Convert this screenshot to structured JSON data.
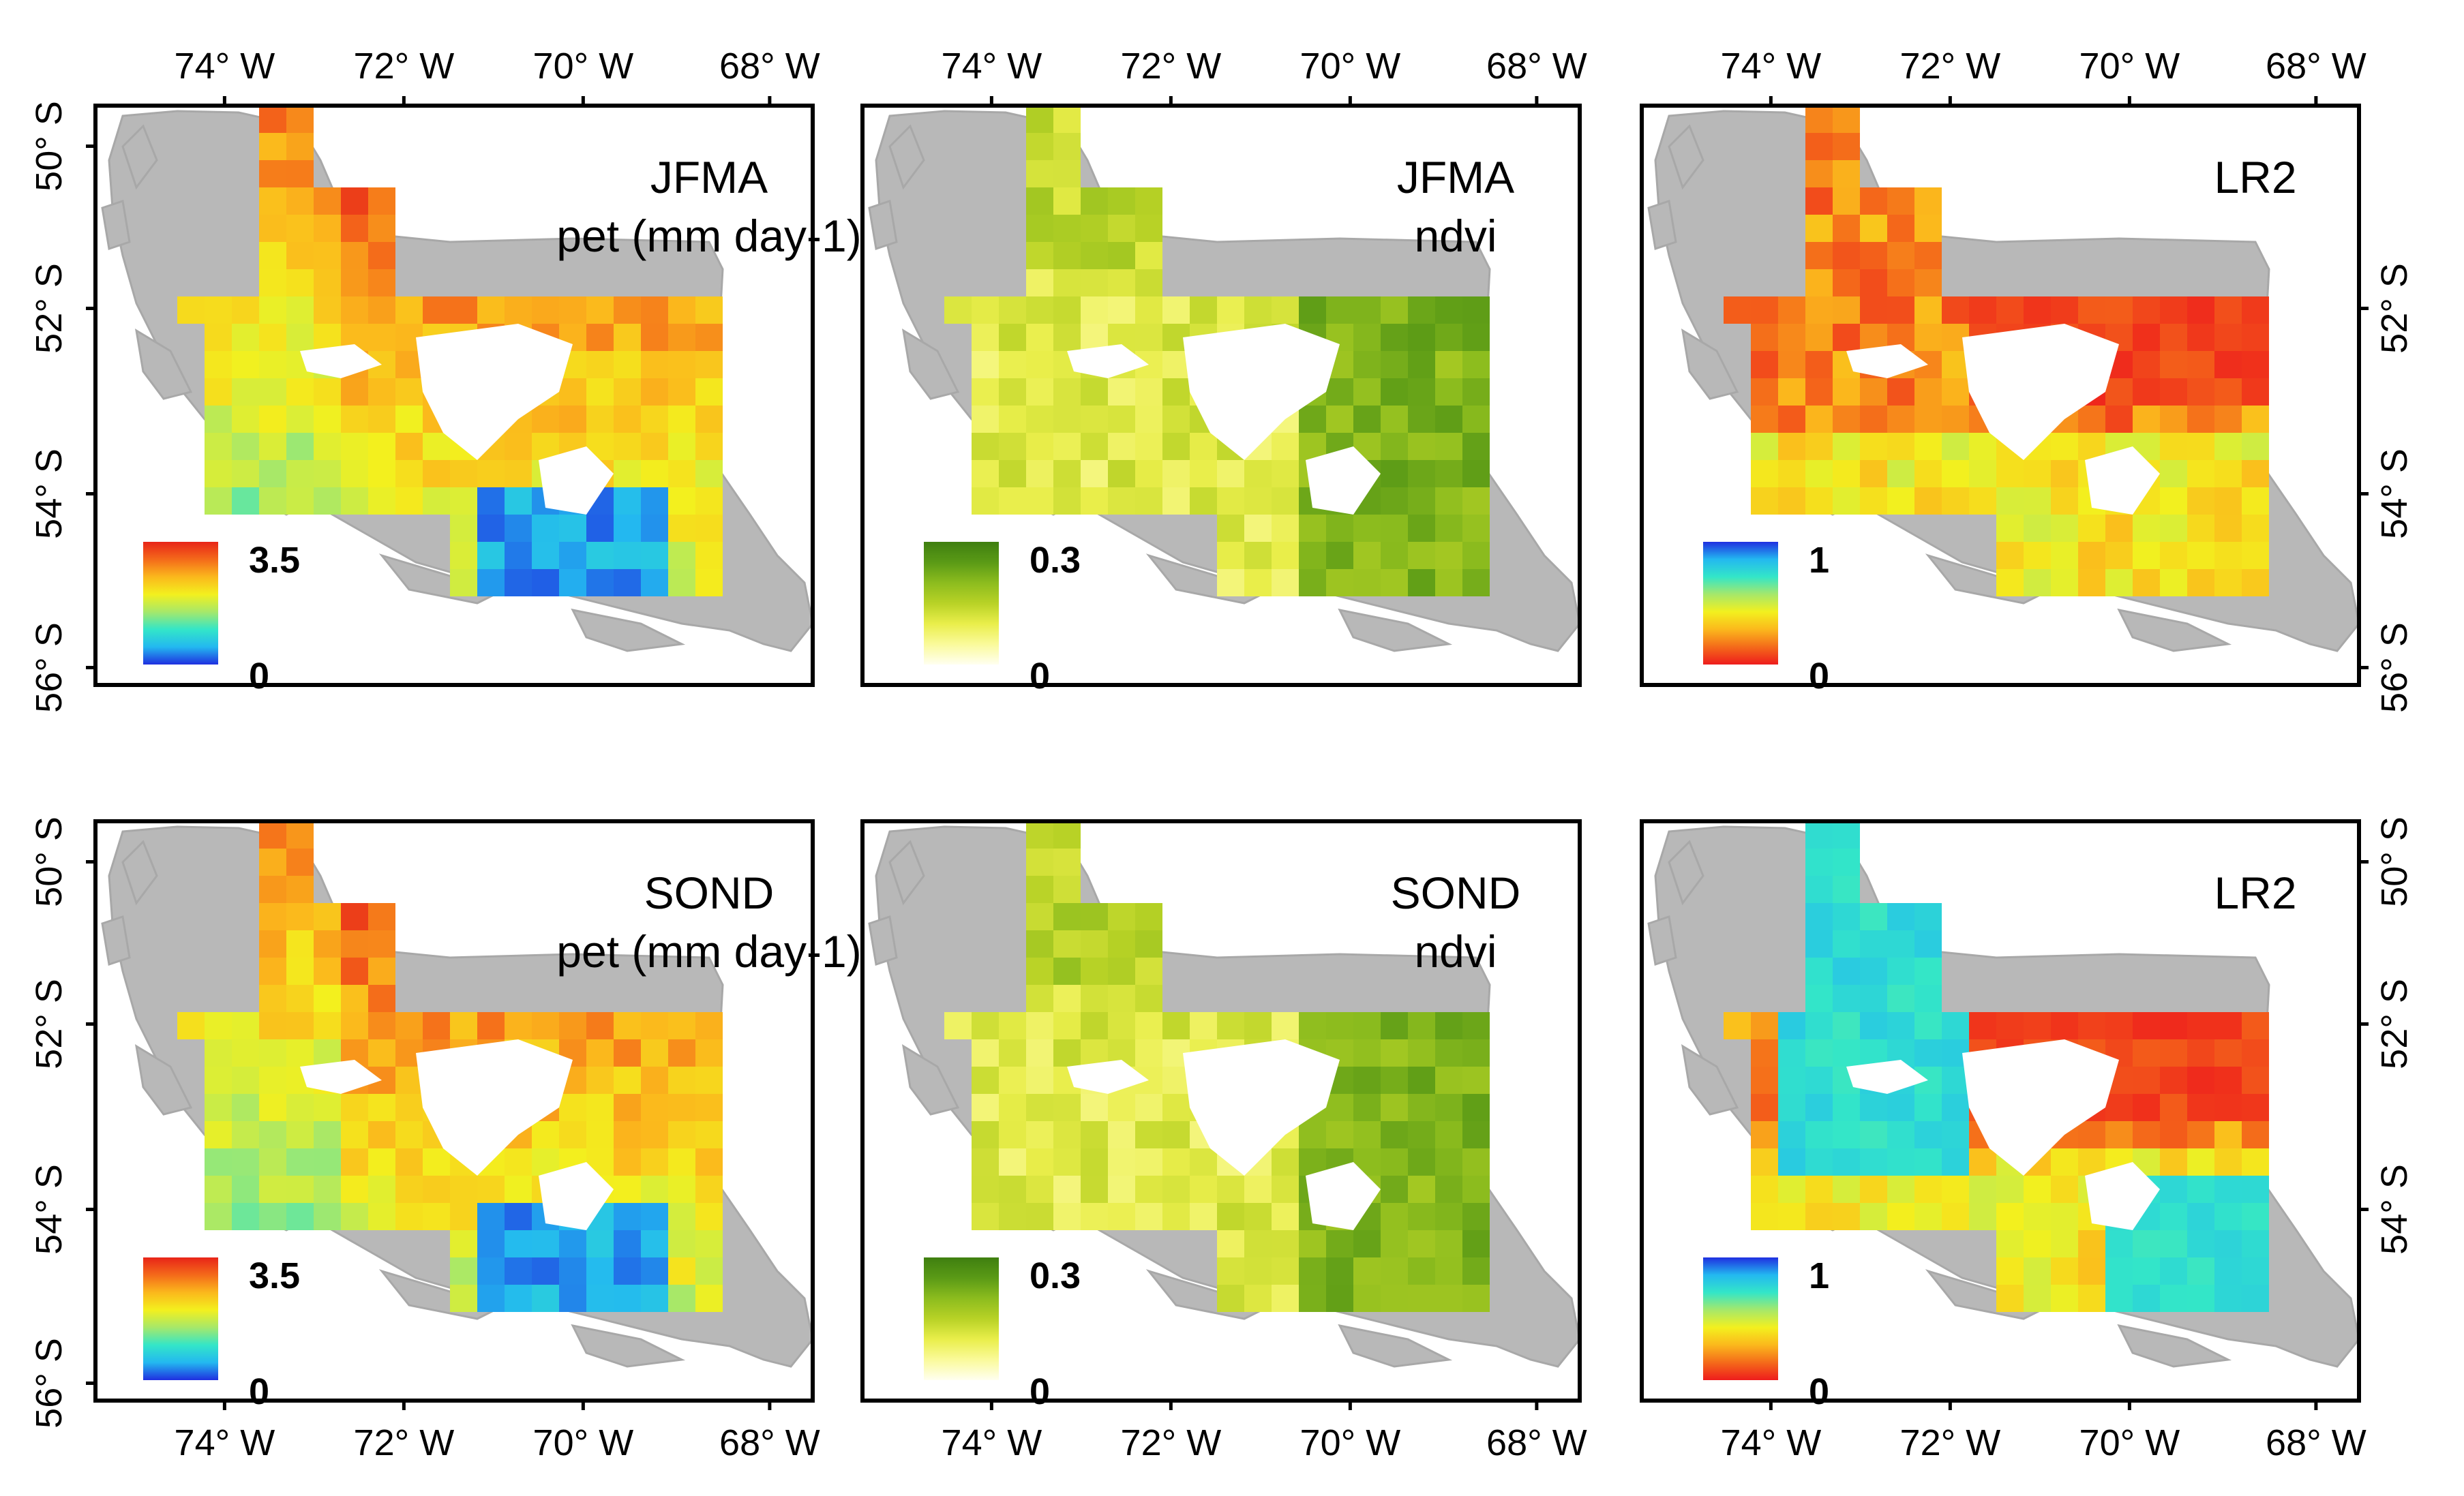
{
  "figure": {
    "colormaps": {
      "pet": [
        "#1f2fe0",
        "#23b8f0",
        "#33e6c8",
        "#a6e86a",
        "#f3f01e",
        "#fbb81c",
        "#f46a1a",
        "#e82418"
      ],
      "ndvi": [
        "#fffff0",
        "#fafa9a",
        "#e9ee4a",
        "#b8d226",
        "#8cbc1e",
        "#5a9a16",
        "#3f7f10"
      ],
      "lr2": [
        "#ee1c1c",
        "#f46a1a",
        "#fbb81c",
        "#f3f01e",
        "#a6e86a",
        "#33e6c8",
        "#23b8f0",
        "#1f2fe0"
      ]
    },
    "panels": [
      {
        "id": "pet-jfma",
        "title_line1": "JFMA",
        "title_line2": "pet (mm day-1)",
        "colormap": "pet",
        "legend_max": "3.5",
        "legend_min": "0",
        "x_ticks_top": [
          "74° W",
          "72° W",
          "70° W",
          "68° W"
        ],
        "x_ticks_bottom": [],
        "y_ticks_left": [
          "50° S",
          "52° S",
          "54° S",
          "56° S"
        ],
        "y_ticks_right": []
      },
      {
        "id": "ndvi-jfma",
        "title_line1": "JFMA",
        "title_line2": "ndvi",
        "colormap": "ndvi",
        "legend_max": "0.3",
        "legend_min": "0",
        "x_ticks_top": [
          "74° W",
          "72° W",
          "70° W",
          "68° W"
        ],
        "x_ticks_bottom": [],
        "y_ticks_left": [],
        "y_ticks_right": []
      },
      {
        "id": "lr2-jfma",
        "title_line1": "LR2",
        "title_line2": "",
        "colormap": "lr2",
        "legend_max": "1",
        "legend_min": "0",
        "x_ticks_top": [
          "74° W",
          "72° W",
          "70° W",
          "68° W"
        ],
        "x_ticks_bottom": [],
        "y_ticks_left": [],
        "y_ticks_right": [
          "52° S",
          "54° S",
          "56° S"
        ]
      },
      {
        "id": "pet-sond",
        "title_line1": "SOND",
        "title_line2": "pet (mm day-1)",
        "colormap": "pet",
        "legend_max": "3.5",
        "legend_min": "0",
        "x_ticks_top": [],
        "x_ticks_bottom": [
          "74° W",
          "72° W",
          "70° W",
          "68° W"
        ],
        "y_ticks_left": [
          "50° S",
          "52° S",
          "54° S",
          "56° S"
        ],
        "y_ticks_right": []
      },
      {
        "id": "ndvi-sond",
        "title_line1": "SOND",
        "title_line2": "ndvi",
        "colormap": "ndvi",
        "legend_max": "0.3",
        "legend_min": "0",
        "x_ticks_top": [],
        "x_ticks_bottom": [
          "74° W",
          "72° W",
          "70° W",
          "68° W"
        ],
        "y_ticks_left": [],
        "y_ticks_right": []
      },
      {
        "id": "lr2-sond",
        "title_line1": "LR2",
        "title_line2": "",
        "colormap": "lr2",
        "legend_max": "1",
        "legend_min": "0",
        "x_ticks_top": [],
        "x_ticks_bottom": [
          "74° W",
          "72° W",
          "70° W",
          "68° W"
        ],
        "y_ticks_left": [],
        "y_ticks_right": [
          "50° S",
          "52° S",
          "54° S"
        ]
      }
    ]
  }
}
